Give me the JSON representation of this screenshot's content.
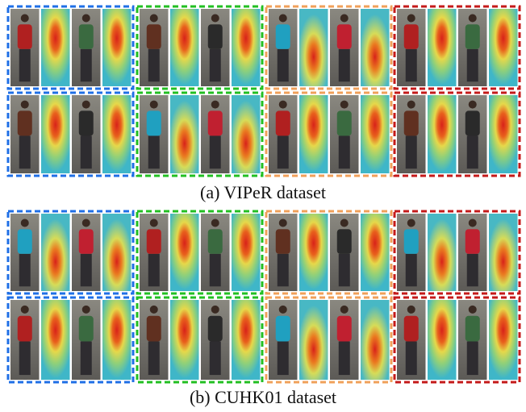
{
  "figure": {
    "panels": [
      {
        "caption": "(a) VIPeR dataset"
      },
      {
        "caption": "(b) CUHK01 dataset"
      }
    ]
  }
}
